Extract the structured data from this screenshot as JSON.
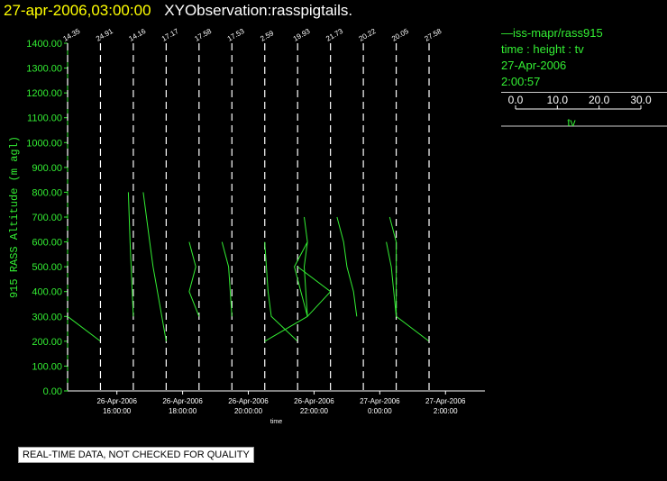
{
  "header": {
    "datetime": "27-apr-2006,03:00:00",
    "title": "XYObservation:rasspigtails."
  },
  "legend": {
    "series_label": "—iss-mapr/rass915",
    "variables": "time : height : tv",
    "date": "27-Apr-2006",
    "time": "2:00:57",
    "colorbar_ticks": [
      "0.0",
      "10.0",
      "20.0",
      "30.0"
    ],
    "colorbar_label": "tv"
  },
  "notice": "REAL-TIME DATA, NOT CHECKED FOR QUALITY",
  "colors": {
    "trace": "#33ee33",
    "axis": "#ffffff",
    "ylabel": "#33ee33",
    "title_time": "#ffff00"
  },
  "chart_data": {
    "type": "line",
    "ylabel": "915 RASS Altitude (m agl)",
    "xlabel": "time",
    "ylim": [
      0,
      1400
    ],
    "xlim": [
      14.5,
      27.2
    ],
    "yticks": [
      "0.00",
      "100.00",
      "200.00",
      "300.00",
      "400.00",
      "500.00",
      "600.00",
      "700.00",
      "800.00",
      "900.00",
      "1000.00",
      "1100.00",
      "1200.00",
      "1300.00",
      "1400.00"
    ],
    "xticks": [
      {
        "x": 16,
        "date": "26-Apr-2006",
        "time": "16:00:00"
      },
      {
        "x": 18,
        "date": "26-Apr-2006",
        "time": "18:00:00"
      },
      {
        "x": 20,
        "date": "26-Apr-2006",
        "time": "20:00:00"
      },
      {
        "x": 22,
        "date": "26-Apr-2006",
        "time": "22:00:00"
      },
      {
        "x": 24,
        "date": "27-Apr-2006",
        "time": "0:00:00"
      },
      {
        "x": 26,
        "date": "27-Apr-2006",
        "time": "2:00:00"
      }
    ],
    "profiles": [
      {
        "base": 14.5,
        "label": "14.35",
        "points": [
          [
            14.5,
            300
          ],
          [
            15.5,
            200
          ]
        ]
      },
      {
        "base": 15.5,
        "label": "24.91",
        "points": []
      },
      {
        "base": 16.5,
        "label": "14.16",
        "points": [
          [
            16.35,
            800
          ],
          [
            16.4,
            600
          ],
          [
            16.5,
            300
          ]
        ]
      },
      {
        "base": 17.5,
        "label": "17.17",
        "points": [
          [
            16.8,
            800
          ],
          [
            17.0,
            600
          ],
          [
            17.1,
            500
          ],
          [
            17.5,
            200
          ]
        ]
      },
      {
        "base": 18.5,
        "label": "17.58",
        "points": [
          [
            18.2,
            600
          ],
          [
            18.4,
            500
          ],
          [
            18.2,
            400
          ],
          [
            18.5,
            300
          ]
        ]
      },
      {
        "base": 19.5,
        "label": "17.53",
        "points": [
          [
            19.2,
            600
          ],
          [
            19.4,
            500
          ],
          [
            19.5,
            300
          ]
        ]
      },
      {
        "base": 20.5,
        "label": "2.59",
        "points": [
          [
            20.5,
            600
          ],
          [
            20.6,
            400
          ],
          [
            20.7,
            300
          ],
          [
            21.5,
            200
          ]
        ]
      },
      {
        "base": 21.5,
        "label": "19.93",
        "points": [
          [
            20.5,
            200
          ],
          [
            21.8,
            300
          ],
          [
            21.7,
            500
          ],
          [
            21.8,
            600
          ],
          [
            21.7,
            700
          ],
          [
            21.8,
            600
          ],
          [
            21.4,
            500
          ],
          [
            21.6,
            400
          ],
          [
            21.8,
            300
          ],
          [
            22.5,
            400
          ],
          [
            21.5,
            500
          ]
        ]
      },
      {
        "base": 22.5,
        "label": "21.73",
        "points": [
          [
            22.7,
            700
          ],
          [
            22.9,
            600
          ],
          [
            23.0,
            500
          ],
          [
            23.2,
            400
          ],
          [
            23.3,
            300
          ]
        ]
      },
      {
        "base": 23.5,
        "label": "20.22",
        "points": [
          [
            24.2,
            600
          ],
          [
            24.35,
            500
          ],
          [
            24.5,
            300
          ]
        ]
      },
      {
        "base": 24.5,
        "label": "20.05",
        "points": [
          [
            24.3,
            700
          ],
          [
            24.5,
            600
          ],
          [
            24.5,
            400
          ],
          [
            24.5,
            300
          ],
          [
            25.5,
            200
          ]
        ]
      },
      {
        "base": 25.5,
        "label": "27.58",
        "points": []
      }
    ]
  }
}
